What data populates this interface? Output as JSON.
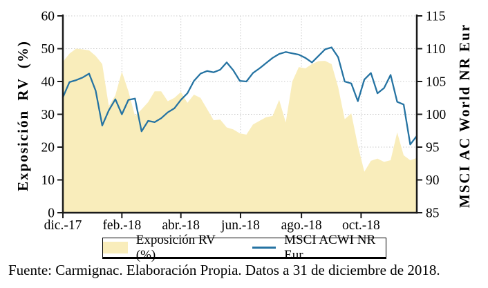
{
  "caption": "Fuente: Carmignac. Elaboración Propia. Datos a 31 de diciembre de 2018.",
  "colors": {
    "area_fill": "#F9EDBB",
    "line": "#2573A2",
    "axis": "#1a1a1a",
    "grid": "#c9c9c9",
    "text": "#000000"
  },
  "chart_data": {
    "type": "combo-area-line",
    "x_unit": "week",
    "x_ticks": [
      {
        "label": "dic.-17",
        "week": 0
      },
      {
        "label": "feb.-18",
        "week": 9
      },
      {
        "label": "abr.-18",
        "week": 18
      },
      {
        "label": "jun.-18",
        "week": 27.1
      },
      {
        "label": "ago.-18",
        "week": 36.4
      },
      {
        "label": "oct.-18",
        "week": 45.5
      }
    ],
    "left_axis": {
      "title": "Exposición RV (%)",
      "min": 0,
      "max": 60,
      "ticks": [
        0,
        10,
        20,
        30,
        40,
        50,
        60
      ]
    },
    "right_axis": {
      "title": "MSCI AC World NR Eur",
      "min": 85,
      "max": 115,
      "ticks": [
        85,
        90,
        95,
        100,
        105,
        110,
        115
      ]
    },
    "grid": "dotted",
    "legend_position": "bottom",
    "series": [
      {
        "name": "Exposición RV (%)",
        "type": "area",
        "axis": "left",
        "color": "#F9EDBB",
        "values": [
          46,
          48.5,
          50,
          49.8,
          49.5,
          47.8,
          45.3,
          32.5,
          35.8,
          43,
          37,
          29.5,
          31.5,
          33.7,
          37,
          37,
          34,
          35,
          36.8,
          33.5,
          36,
          35,
          31.6,
          28.2,
          28.4,
          26,
          25.4,
          24.2,
          23.8,
          26.9,
          28,
          29.1,
          29.5,
          34.4,
          27.5,
          40,
          44.4,
          44,
          45.3,
          46.2,
          46.3,
          45.3,
          38.3,
          28.5,
          30.3,
          20.5,
          12.5,
          15.8,
          16.5,
          15.5,
          16,
          24.5,
          17.5,
          16,
          16.7
        ]
      },
      {
        "name": "MSCI ACWI NR Eur",
        "type": "line",
        "axis": "right",
        "color": "#2573A2",
        "values": [
          102.6,
          104.9,
          105.2,
          105.6,
          106.2,
          103.6,
          98.3,
          100.6,
          102.3,
          100.0,
          102.2,
          102.4,
          97.4,
          99.0,
          98.8,
          99.4,
          100.3,
          100.9,
          102.2,
          103.2,
          105.1,
          106.2,
          106.6,
          106.4,
          106.8,
          107.9,
          106.7,
          105.1,
          105.0,
          106.3,
          107.0,
          107.8,
          108.6,
          109.2,
          109.5,
          109.3,
          109.1,
          108.6,
          107.9,
          108.9,
          109.9,
          110.2,
          108.7,
          105.0,
          104.7,
          102.0,
          105.3,
          106.3,
          103.2,
          104.0,
          106.0,
          101.9,
          101.5,
          95.4,
          96.7
        ]
      }
    ]
  }
}
